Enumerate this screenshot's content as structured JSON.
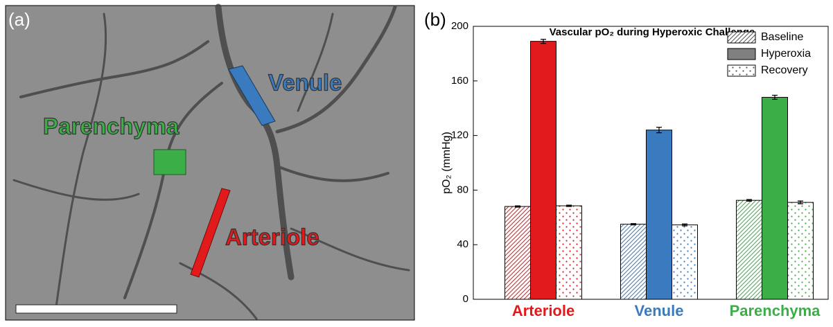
{
  "image_panel": {
    "label": "(a)",
    "regions": [
      {
        "name": "Venule",
        "color": "#3a7bbf"
      },
      {
        "name": "Parenchyma",
        "color": "#3cae48"
      },
      {
        "name": "Arteriole",
        "color": "#e31a1c"
      }
    ]
  },
  "chart_data": {
    "type": "bar",
    "panel_label": "(b)",
    "title": "Vascular pO₂ during Hyperoxic Challenge",
    "y_label": "pO₂ (mmHg)",
    "categories": [
      "Arteriole",
      "Venule",
      "Parenchyma"
    ],
    "category_colors": [
      "#e31a1c",
      "#3a7bbf",
      "#3cae48"
    ],
    "series": [
      {
        "name": "Baseline",
        "pattern": "hatch",
        "color": "#555555",
        "values": [
          68,
          55,
          72.5
        ],
        "errors": [
          0.5,
          0.5,
          0.6
        ]
      },
      {
        "name": "Hyperoxia",
        "pattern": "solid",
        "color": "#808080",
        "values": [
          189,
          124,
          148
        ],
        "errors": [
          1.5,
          2,
          1.5
        ]
      },
      {
        "name": "Recovery",
        "pattern": "dots",
        "color": "#555555",
        "values": [
          68.5,
          54.5,
          71
        ],
        "errors": [
          0.5,
          0.7,
          1
        ]
      }
    ],
    "ylim": [
      0,
      200
    ],
    "yticks": [
      0,
      40,
      80,
      120,
      160,
      200
    ],
    "grid": false,
    "legend": "top-right"
  }
}
